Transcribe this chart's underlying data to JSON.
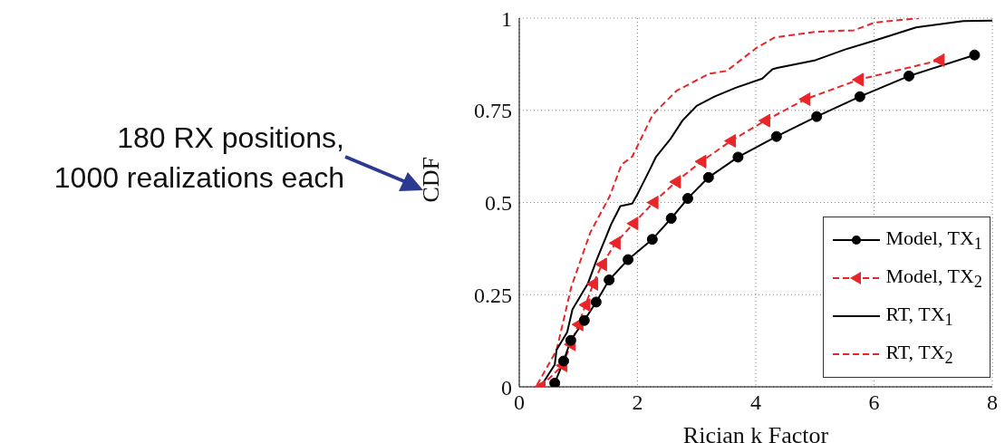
{
  "chart_data": {
    "type": "line",
    "xlabel": "Rician k Factor",
    "ylabel": "CDF",
    "annotations": [
      "180 RX positions,\n1000 realizations each"
    ],
    "xlim": [
      0,
      8
    ],
    "ylim": [
      0,
      1
    ],
    "xticks": [
      0,
      2,
      4,
      6,
      8
    ],
    "yticks": [
      0,
      0.25,
      0.5,
      0.75,
      1
    ],
    "grid": true,
    "legend": "bottom right",
    "series": [
      {
        "name": "Model, TX$_{1}$",
        "color": "#000000",
        "marker": "circle",
        "line_style": "solid",
        "x": [
          0.6,
          0.75,
          0.87,
          1.1,
          1.3,
          1.52,
          1.84,
          2.25,
          2.57,
          2.85,
          3.2,
          3.7,
          4.35,
          5.03,
          5.76,
          6.59,
          7.7
        ],
        "values": [
          0.01,
          0.07,
          0.126,
          0.18,
          0.23,
          0.29,
          0.345,
          0.4,
          0.457,
          0.511,
          0.568,
          0.623,
          0.679,
          0.733,
          0.787,
          0.843,
          0.9
        ]
      },
      {
        "name": "Model, TX$_{2}$",
        "color": "#e8262a",
        "marker": "triangle",
        "line_style": "dashed",
        "x": [
          0.36,
          0.73,
          0.87,
          1.0,
          1.12,
          1.25,
          1.4,
          1.63,
          1.93,
          2.27,
          2.65,
          3.08,
          3.58,
          4.16,
          4.84,
          5.74,
          7.11
        ],
        "values": [
          0,
          0.058,
          0.115,
          0.169,
          0.222,
          0.279,
          0.332,
          0.39,
          0.443,
          0.5,
          0.556,
          0.611,
          0.667,
          0.722,
          0.78,
          0.833,
          0.886
        ]
      },
      {
        "name": "RT, TX$_{1}$",
        "color": "#000000",
        "marker": "none",
        "line_style": "solid",
        "x": [
          0.4,
          0.6,
          0.63,
          0.81,
          0.9,
          1.16,
          1.31,
          1.56,
          1.71,
          1.91,
          2.01,
          2.21,
          2.31,
          2.56,
          2.76,
          3.0,
          3.3,
          3.66,
          4.11,
          4.28,
          4.36,
          5.01,
          5.51,
          6.01,
          6.71,
          7.51,
          8
        ],
        "values": [
          0.01,
          0.06,
          0.1,
          0.148,
          0.21,
          0.28,
          0.345,
          0.443,
          0.49,
          0.497,
          0.526,
          0.59,
          0.623,
          0.673,
          0.722,
          0.762,
          0.787,
          0.811,
          0.836,
          0.861,
          0.865,
          0.886,
          0.915,
          0.939,
          0.975,
          0.992,
          0.993
        ]
      },
      {
        "name": "RT, TX$_{2}$",
        "color": "#e8262a",
        "marker": "none",
        "line_style": "dashed",
        "x": [
          0.3,
          0.63,
          0.88,
          1.2,
          1.53,
          1.73,
          1.91,
          2.26,
          2.66,
          3.21,
          3.51,
          4.01,
          4.31,
          5.01,
          5.66,
          6.01,
          6.76
        ],
        "values": [
          0.005,
          0.099,
          0.271,
          0.418,
          0.517,
          0.603,
          0.624,
          0.739,
          0.803,
          0.849,
          0.857,
          0.919,
          0.947,
          0.963,
          0.967,
          0.988,
          1.0
        ]
      }
    ]
  }
}
